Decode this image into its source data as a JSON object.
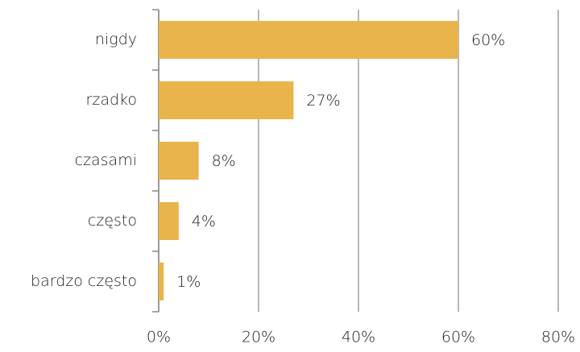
{
  "chart_data": {
    "type": "barh",
    "categories": [
      "nigdy",
      "rzadko",
      "czasami",
      "często",
      "bardzo często"
    ],
    "values": [
      60,
      27,
      8,
      4,
      1
    ],
    "value_labels": [
      "60%",
      "27%",
      "8%",
      "4%",
      "1%"
    ],
    "color": "#e8b44b",
    "xlim": [
      0,
      80
    ],
    "xticks": [
      {
        "value": 0,
        "label": "0%"
      },
      {
        "value": 20,
        "label": "20%"
      },
      {
        "value": 40,
        "label": "40%"
      },
      {
        "value": 60,
        "label": "60%"
      },
      {
        "value": 80,
        "label": "80%"
      }
    ],
    "grid": true
  }
}
